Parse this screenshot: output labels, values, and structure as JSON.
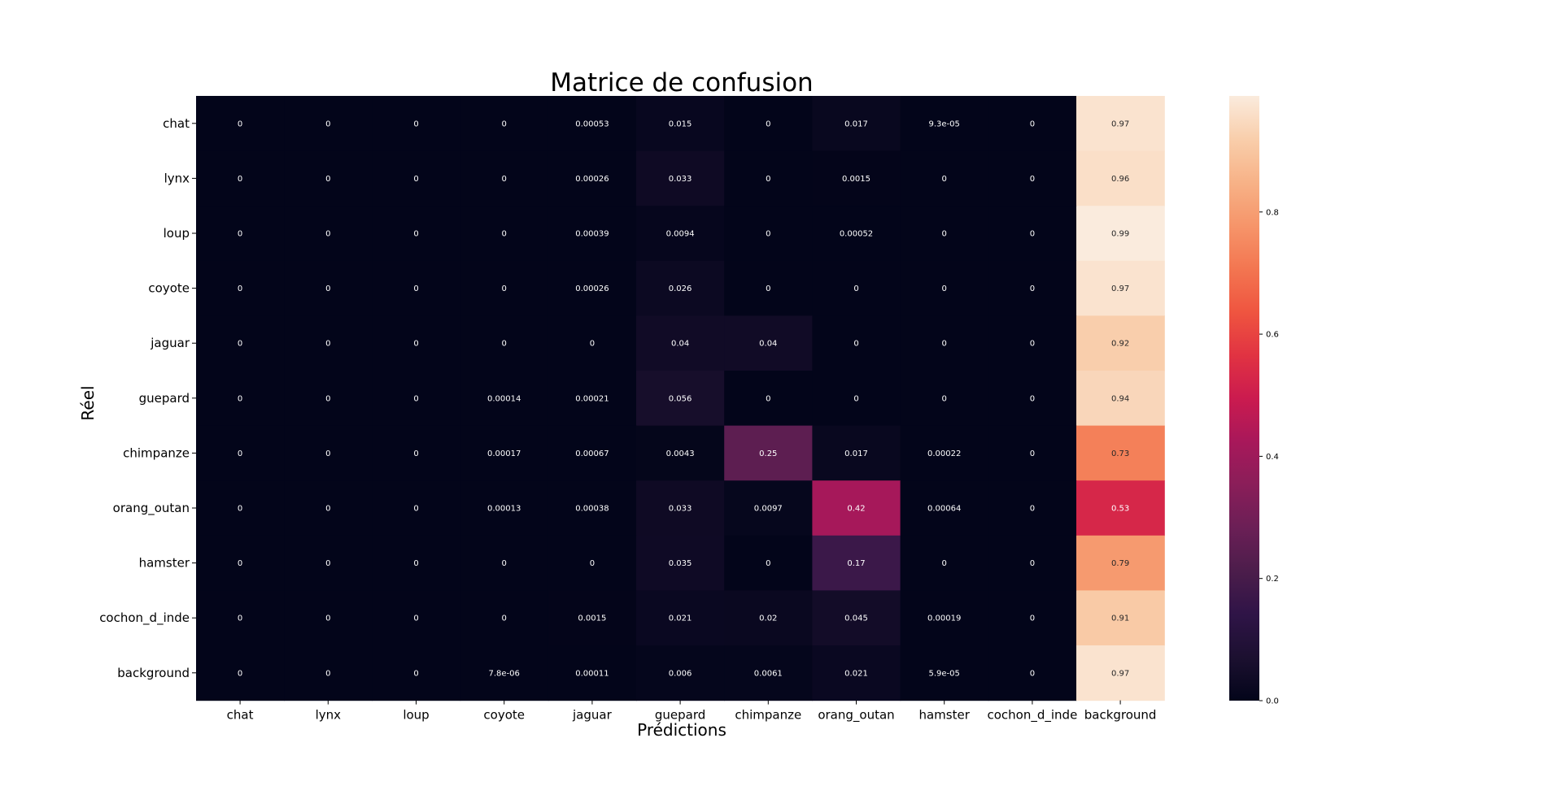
{
  "chart_data": {
    "type": "heatmap",
    "title": "Matrice de confusion",
    "xlabel": "Prédictions",
    "ylabel": "Réel",
    "x_categories": [
      "chat",
      "lynx",
      "loup",
      "coyote",
      "jaguar",
      "guepard",
      "chimpanze",
      "orang_outan",
      "hamster",
      "cochon_d_inde",
      "background"
    ],
    "y_categories": [
      "chat",
      "lynx",
      "loup",
      "coyote",
      "jaguar",
      "guepard",
      "chimpanze",
      "orang_outan",
      "hamster",
      "cochon_d_inde",
      "background"
    ],
    "cell_labels": [
      [
        "0",
        "0",
        "0",
        "0",
        "0.00053",
        "0.015",
        "0",
        "0.017",
        "9.3e-05",
        "0",
        "0.97"
      ],
      [
        "0",
        "0",
        "0",
        "0",
        "0.00026",
        "0.033",
        "0",
        "0.0015",
        "0",
        "0",
        "0.96"
      ],
      [
        "0",
        "0",
        "0",
        "0",
        "0.00039",
        "0.0094",
        "0",
        "0.00052",
        "0",
        "0",
        "0.99"
      ],
      [
        "0",
        "0",
        "0",
        "0",
        "0.00026",
        "0.026",
        "0",
        "0",
        "0",
        "0",
        "0.97"
      ],
      [
        "0",
        "0",
        "0",
        "0",
        "0",
        "0.04",
        "0.04",
        "0",
        "0",
        "0",
        "0.92"
      ],
      [
        "0",
        "0",
        "0",
        "0.00014",
        "0.00021",
        "0.056",
        "0",
        "0",
        "0",
        "0",
        "0.94"
      ],
      [
        "0",
        "0",
        "0",
        "0.00017",
        "0.00067",
        "0.0043",
        "0.25",
        "0.017",
        "0.00022",
        "0",
        "0.73"
      ],
      [
        "0",
        "0",
        "0",
        "0.00013",
        "0.00038",
        "0.033",
        "0.0097",
        "0.42",
        "0.00064",
        "0",
        "0.53"
      ],
      [
        "0",
        "0",
        "0",
        "0",
        "0",
        "0.035",
        "0",
        "0.17",
        "0",
        "0",
        "0.79"
      ],
      [
        "0",
        "0",
        "0",
        "0",
        "0.0015",
        "0.021",
        "0.02",
        "0.045",
        "0.00019",
        "0",
        "0.91"
      ],
      [
        "0",
        "0",
        "0",
        "7.8e-06",
        "0.00011",
        "0.006",
        "0.0061",
        "0.021",
        "5.9e-05",
        "0",
        "0.97"
      ]
    ],
    "values": [
      [
        0,
        0,
        0,
        0,
        0.00053,
        0.015,
        0,
        0.017,
        9.3e-05,
        0,
        0.97
      ],
      [
        0,
        0,
        0,
        0,
        0.00026,
        0.033,
        0,
        0.0015,
        0,
        0,
        0.96
      ],
      [
        0,
        0,
        0,
        0,
        0.00039,
        0.0094,
        0,
        0.00052,
        0,
        0,
        0.99
      ],
      [
        0,
        0,
        0,
        0,
        0.00026,
        0.026,
        0,
        0,
        0,
        0,
        0.97
      ],
      [
        0,
        0,
        0,
        0,
        0,
        0.04,
        0.04,
        0,
        0,
        0,
        0.92
      ],
      [
        0,
        0,
        0,
        0.00014,
        0.00021,
        0.056,
        0,
        0,
        0,
        0,
        0.94
      ],
      [
        0,
        0,
        0,
        0.00017,
        0.00067,
        0.0043,
        0.25,
        0.017,
        0.00022,
        0,
        0.73
      ],
      [
        0,
        0,
        0,
        0.00013,
        0.00038,
        0.033,
        0.0097,
        0.42,
        0.00064,
        0,
        0.53
      ],
      [
        0,
        0,
        0,
        0,
        0,
        0.035,
        0,
        0.17,
        0,
        0,
        0.79
      ],
      [
        0,
        0,
        0,
        0,
        0.0015,
        0.021,
        0.02,
        0.045,
        0.00019,
        0,
        0.91
      ],
      [
        0,
        0,
        0,
        7.8e-06,
        0.00011,
        0.006,
        0.0061,
        0.021,
        5.9e-05,
        0,
        0.97
      ]
    ],
    "colorbar": {
      "ticks": [
        0.0,
        0.2,
        0.4,
        0.6,
        0.8
      ],
      "tick_labels": [
        "0.0",
        "0.2",
        "0.4",
        "0.6",
        "0.8"
      ],
      "range": [
        0,
        0.99
      ],
      "colormap": "rocket"
    },
    "colors": {
      "cmap_stops": [
        "#03051a",
        "#1c1030",
        "#2f1447",
        "#4c1d4b",
        "#6b1f56",
        "#8a1e59",
        "#a8185a",
        "#cb1b4f",
        "#e13342",
        "#ef5540",
        "#f37651",
        "#f6956a",
        "#f7b287",
        "#f9ceab",
        "#faebdd"
      ]
    },
    "grid": false,
    "legend": "colorbar-right"
  }
}
